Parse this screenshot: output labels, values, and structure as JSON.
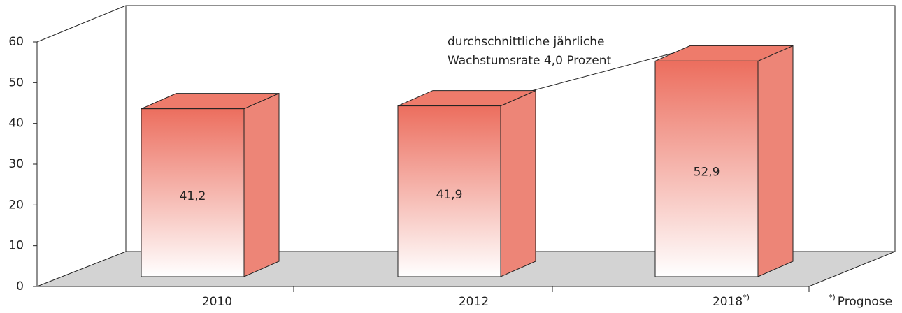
{
  "chart_data": {
    "type": "bar3d",
    "categories": [
      "2010",
      "2012",
      "2018"
    ],
    "values": [
      41.2,
      41.9,
      52.9
    ],
    "value_labels": [
      "41,2",
      "41,9",
      "52,9"
    ],
    "color": "#ec6e5e",
    "ylim": [
      0,
      60
    ],
    "yticks": [
      0,
      10,
      20,
      30,
      40,
      50,
      60
    ],
    "annotation": [
      "durchschnittliche jährliche",
      "Wachstumsrate 4,0 Prozent"
    ],
    "footnote": {
      "marker": "*)",
      "text": "Prognose"
    },
    "footnote_category": 2
  }
}
